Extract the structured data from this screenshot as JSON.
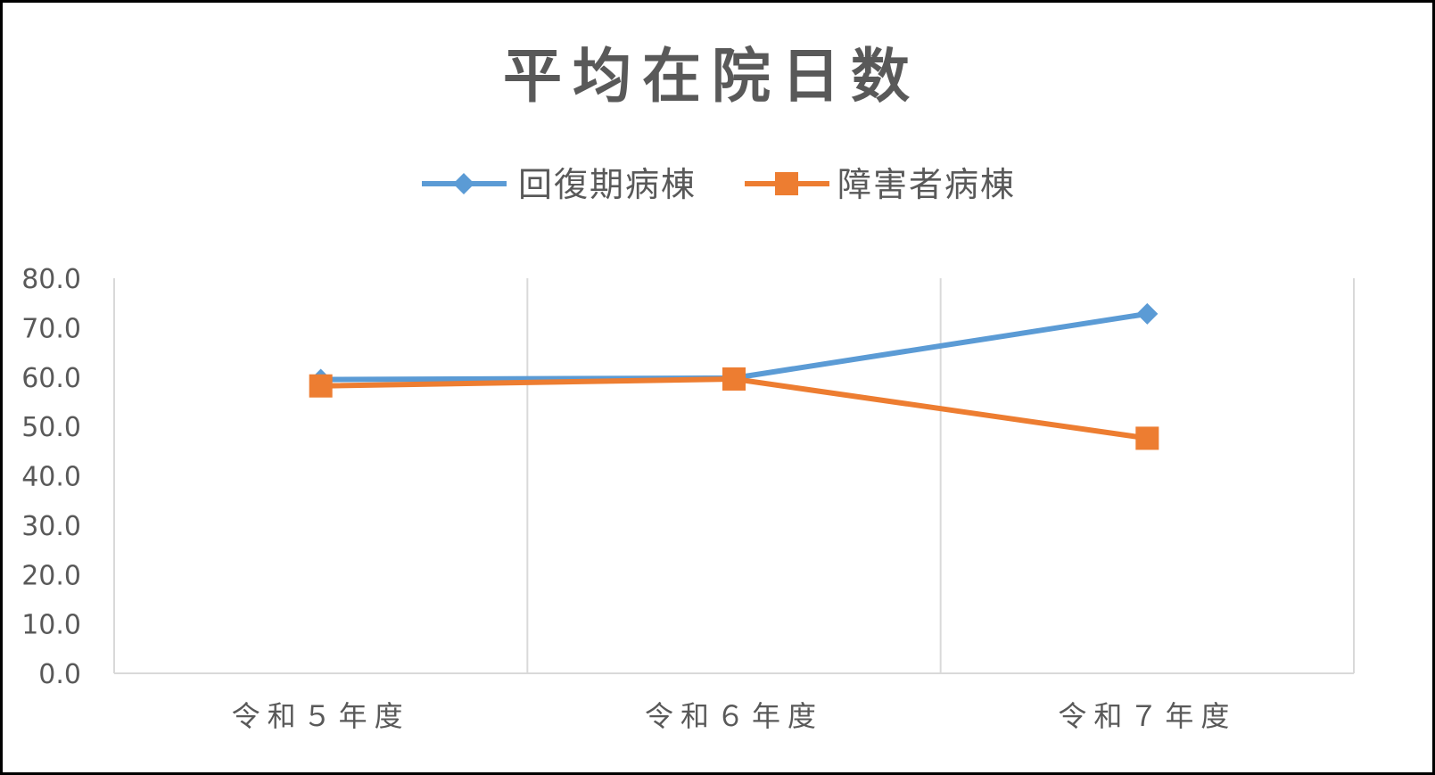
{
  "chart_data": {
    "type": "line",
    "title": "平均在院日数",
    "categories": [
      "令和５年度",
      "令和６年度",
      "令和７年度"
    ],
    "series": [
      {
        "name": "回復期病棟",
        "values": [
          59.5,
          59.8,
          72.8
        ],
        "color": "#5B9BD5",
        "marker": "diamond"
      },
      {
        "name": "障害者病棟",
        "values": [
          58.2,
          59.6,
          47.6
        ],
        "color": "#ED7D31",
        "marker": "square"
      }
    ],
    "y_ticks": [
      "0.0",
      "10.0",
      "20.0",
      "30.0",
      "40.0",
      "50.0",
      "60.0",
      "70.0",
      "80.0"
    ],
    "ylim": [
      0,
      80
    ],
    "grid": "vertical",
    "legend": "top-center",
    "xlabel": "",
    "ylabel": ""
  },
  "colors": {
    "title": "#595959",
    "text": "#595959",
    "grid": "#D9D9D9",
    "border": "#000000"
  }
}
